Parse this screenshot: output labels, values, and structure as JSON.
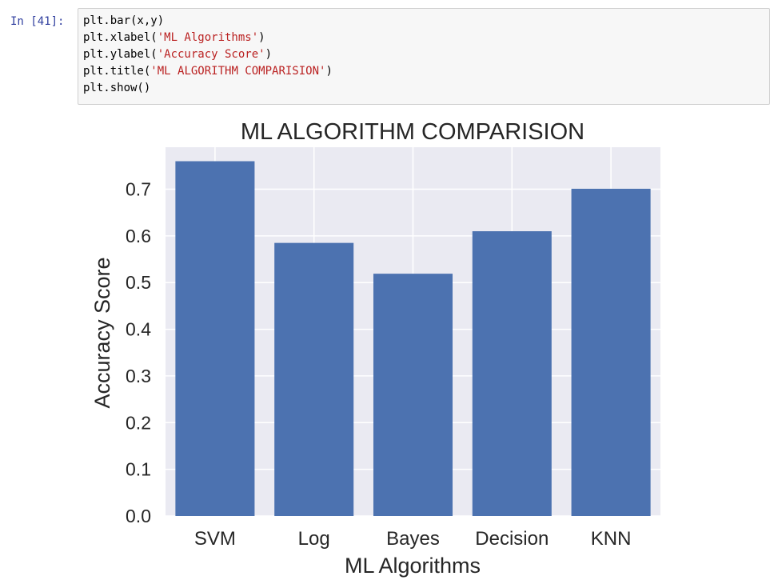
{
  "cell": {
    "prompt": "In [41]:",
    "code_lines": [
      {
        "pre": "plt.bar(x,y)",
        "str": "",
        "post": ""
      },
      {
        "pre": "plt.xlabel(",
        "str": "'ML Algorithms'",
        "post": ")"
      },
      {
        "pre": "plt.ylabel(",
        "str": "'Accuracy Score'",
        "post": ")"
      },
      {
        "pre": "plt.title(",
        "str": "'ML ALGORITHM COMPARISION'",
        "post": ")"
      },
      {
        "pre": "plt.show()",
        "str": "",
        "post": ""
      }
    ]
  },
  "chart_data": {
    "type": "bar",
    "title": "ML ALGORITHM COMPARISION",
    "xlabel": "ML Algorithms",
    "ylabel": "Accuracy Score",
    "categories": [
      "SVM",
      "Log",
      "Bayes",
      "Decision",
      "KNN"
    ],
    "values": [
      0.76,
      0.585,
      0.519,
      0.61,
      0.701
    ],
    "ylim": [
      0.0,
      0.79
    ],
    "yticks": [
      0.0,
      0.1,
      0.2,
      0.3,
      0.4,
      0.5,
      0.6,
      0.7
    ],
    "ytick_labels": [
      "0.0",
      "0.1",
      "0.2",
      "0.3",
      "0.4",
      "0.5",
      "0.6",
      "0.7"
    ],
    "grid": true,
    "colors": {
      "bar": "#4c72b0",
      "axes_bg": "#eaeaf2",
      "grid": "#ffffff",
      "text": "#262626"
    }
  }
}
